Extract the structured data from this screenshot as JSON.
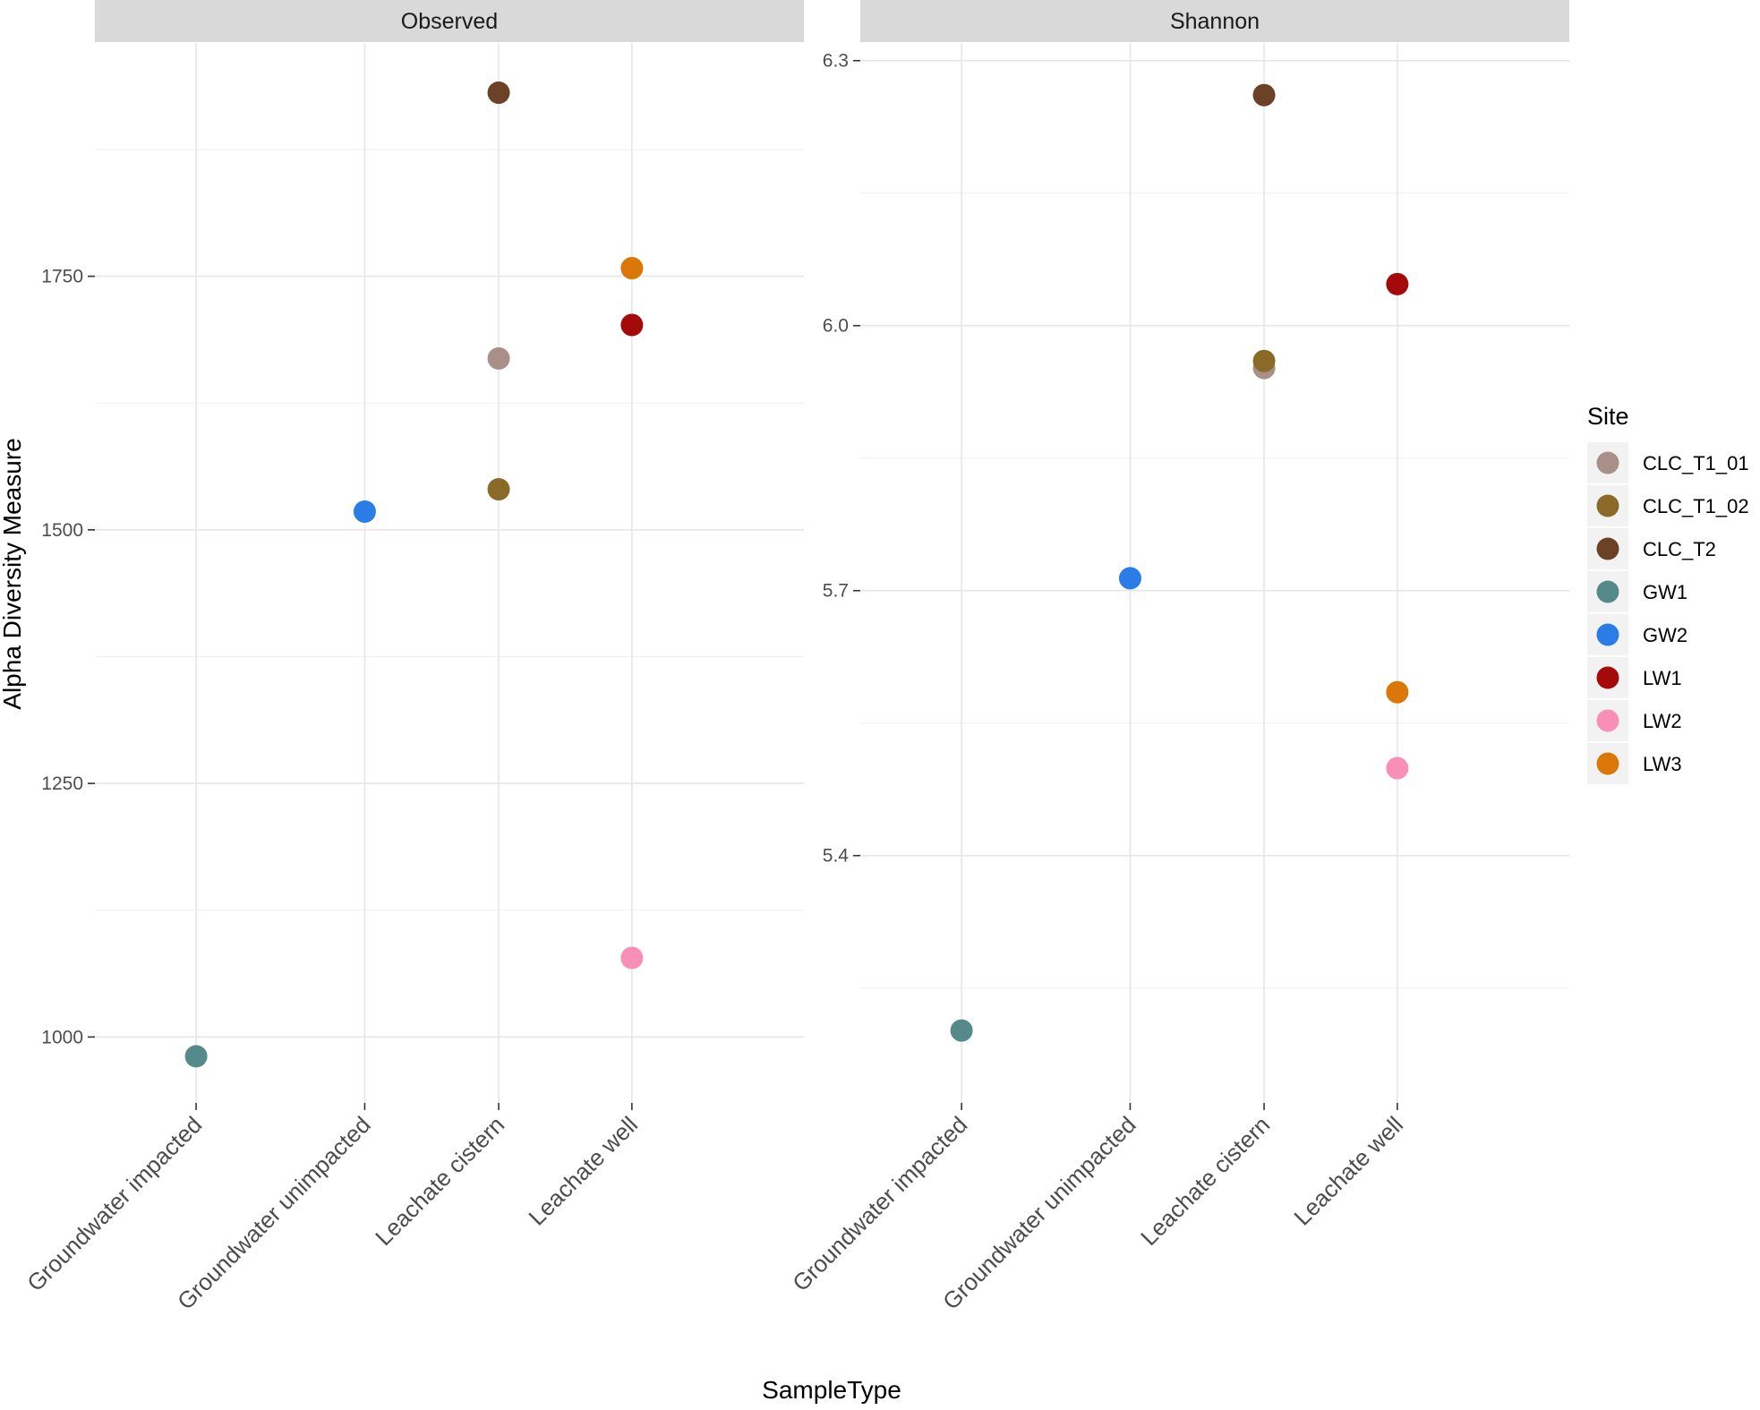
{
  "chart_data": {
    "type": "scatter",
    "ylabel": "Alpha Diversity Measure",
    "xlabel": "SampleType",
    "categories": [
      "Groundwater impacted",
      "Groundwater unimpacted",
      "Leachate cistern",
      "Leachate well"
    ],
    "legend": {
      "title": "Site",
      "position": "right",
      "entries": [
        {
          "name": "CLC_T1_01",
          "color": "#A89088"
        },
        {
          "name": "CLC_T1_02",
          "color": "#8B6A28"
        },
        {
          "name": "CLC_T2",
          "color": "#6B4226"
        },
        {
          "name": "GW1",
          "color": "#568A8A"
        },
        {
          "name": "GW2",
          "color": "#2A7CE6"
        },
        {
          "name": "LW1",
          "color": "#A50A0A"
        },
        {
          "name": "LW2",
          "color": "#F98FB6"
        },
        {
          "name": "LW3",
          "color": "#DB7706"
        }
      ]
    },
    "panels": [
      {
        "title": "Observed",
        "ylim": [
          935,
          1980
        ],
        "yticks": [
          1000,
          1250,
          1500,
          1750
        ],
        "ytick_labels": [
          "1000",
          "1250",
          "1500",
          "1750"
        ],
        "yminor": [
          1125,
          1375,
          1625,
          1875
        ],
        "points": [
          {
            "category": "Groundwater impacted",
            "site": "GW1",
            "value": 981
          },
          {
            "category": "Groundwater unimpacted",
            "site": "GW2",
            "value": 1518
          },
          {
            "category": "Leachate cistern",
            "site": "CLC_T2",
            "value": 1931
          },
          {
            "category": "Leachate cistern",
            "site": "CLC_T1_01",
            "value": 1669
          },
          {
            "category": "Leachate cistern",
            "site": "CLC_T1_02",
            "value": 1540
          },
          {
            "category": "Leachate well",
            "site": "LW3",
            "value": 1758
          },
          {
            "category": "Leachate well",
            "site": "LW1",
            "value": 1702
          },
          {
            "category": "Leachate well",
            "site": "LW2",
            "value": 1078
          }
        ]
      },
      {
        "title": "Shannon",
        "ylim": [
          5.12,
          6.32
        ],
        "yticks": [
          5.4,
          5.7,
          6.0,
          6.3
        ],
        "ytick_labels": [
          "5.4",
          "5.7",
          "6.0",
          "6.3"
        ],
        "yminor": [
          5.25,
          5.55,
          5.85,
          6.15
        ],
        "points": [
          {
            "category": "Groundwater impacted",
            "site": "GW1",
            "value": 5.202
          },
          {
            "category": "Groundwater unimpacted",
            "site": "GW2",
            "value": 5.714
          },
          {
            "category": "Leachate cistern",
            "site": "CLC_T2",
            "value": 6.261
          },
          {
            "category": "Leachate cistern",
            "site": "CLC_T1_01",
            "value": 5.952
          },
          {
            "category": "Leachate cistern",
            "site": "CLC_T1_02",
            "value": 5.96
          },
          {
            "category": "Leachate well",
            "site": "LW1",
            "value": 6.047
          },
          {
            "category": "Leachate well",
            "site": "LW3",
            "value": 5.585
          },
          {
            "category": "Leachate well",
            "site": "LW2",
            "value": 5.499
          }
        ]
      }
    ]
  }
}
